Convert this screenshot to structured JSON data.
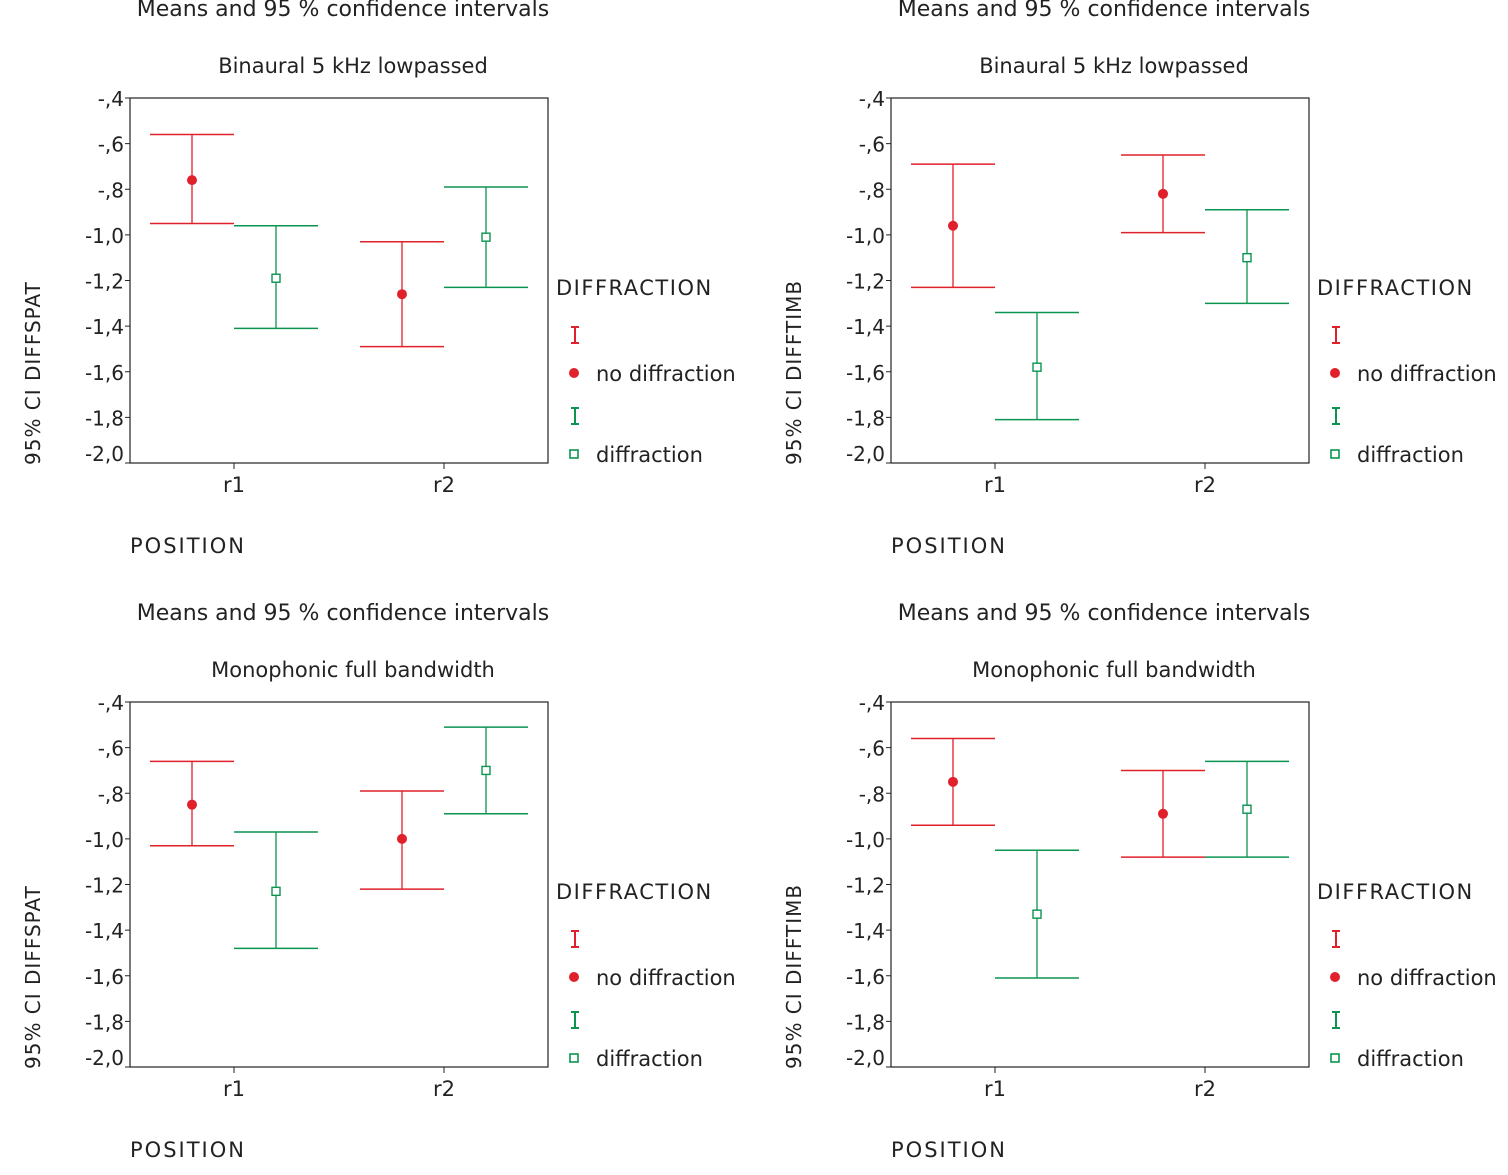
{
  "colors": {
    "no_diffraction": "#e0202a",
    "diffraction": "#0a9450",
    "axis": "#222222"
  },
  "chart_data": [
    {
      "type": "errorbar",
      "title": "Means and 95 % confidence intervals",
      "subtitle": "Binaural 5 kHz lowpassed",
      "xlabel": "POSITION",
      "ylabel": "95% CI DIFFSPAT",
      "categories": [
        "r1",
        "r2"
      ],
      "ylim": [
        -2.0,
        -0.4
      ],
      "yticks": [
        "-,4",
        "-,6",
        "-,8",
        "-1,0",
        "-1,2",
        "-1,4",
        "-1,6",
        "-1,8",
        "-2,0"
      ],
      "legend_title": "DIFFRACTION",
      "series": [
        {
          "name": "no diffraction",
          "mean": [
            -0.76,
            -1.26
          ],
          "upper": [
            -0.56,
            -1.03
          ],
          "lower": [
            -0.95,
            -1.49
          ]
        },
        {
          "name": "diffraction",
          "mean": [
            -1.19,
            -1.01
          ],
          "upper": [
            -0.96,
            -0.79
          ],
          "lower": [
            -1.41,
            -1.23
          ]
        }
      ]
    },
    {
      "type": "errorbar",
      "title": "Means and 95 % confidence intervals",
      "subtitle": "Binaural 5 kHz lowpassed",
      "xlabel": "POSITION",
      "ylabel": "95% CI DIFFTIMB",
      "categories": [
        "r1",
        "r2"
      ],
      "ylim": [
        -2.0,
        -0.4
      ],
      "yticks": [
        "-,4",
        "-,6",
        "-,8",
        "-1,0",
        "-1,2",
        "-1,4",
        "-1,6",
        "-1,8",
        "-2,0"
      ],
      "legend_title": "DIFFRACTION",
      "series": [
        {
          "name": "no diffraction",
          "mean": [
            -0.96,
            -0.82
          ],
          "upper": [
            -0.69,
            -0.65
          ],
          "lower": [
            -1.23,
            -0.99
          ]
        },
        {
          "name": "diffraction",
          "mean": [
            -1.58,
            -1.1
          ],
          "upper": [
            -1.34,
            -0.89
          ],
          "lower": [
            -1.81,
            -1.3
          ]
        }
      ]
    },
    {
      "type": "errorbar",
      "title": "Means and 95 % confidence intervals",
      "subtitle": "Monophonic full bandwidth",
      "xlabel": "POSITION",
      "ylabel": "95% CI DIFFSPAT",
      "categories": [
        "r1",
        "r2"
      ],
      "ylim": [
        -2.0,
        -0.4
      ],
      "yticks": [
        "-,4",
        "-,6",
        "-,8",
        "-1,0",
        "-1,2",
        "-1,4",
        "-1,6",
        "-1,8",
        "-2,0"
      ],
      "legend_title": "DIFFRACTION",
      "series": [
        {
          "name": "no diffraction",
          "mean": [
            -0.85,
            -1.0
          ],
          "upper": [
            -0.66,
            -0.79
          ],
          "lower": [
            -1.03,
            -1.22
          ]
        },
        {
          "name": "diffraction",
          "mean": [
            -1.23,
            -0.7
          ],
          "upper": [
            -0.97,
            -0.51
          ],
          "lower": [
            -1.48,
            -0.89
          ]
        }
      ]
    },
    {
      "type": "errorbar",
      "title": "Means and 95 % confidence intervals",
      "subtitle": "Monophonic full bandwidth",
      "xlabel": "POSITION",
      "ylabel": "95% CI DIFFTIMB",
      "categories": [
        "r1",
        "r2"
      ],
      "ylim": [
        -2.0,
        -0.4
      ],
      "yticks": [
        "-,4",
        "-,6",
        "-,8",
        "-1,0",
        "-1,2",
        "-1,4",
        "-1,6",
        "-1,8",
        "-2,0"
      ],
      "legend_title": "DIFFRACTION",
      "series": [
        {
          "name": "no diffraction",
          "mean": [
            -0.75,
            -0.89
          ],
          "upper": [
            -0.56,
            -0.7
          ],
          "lower": [
            -0.94,
            -1.08
          ]
        },
        {
          "name": "diffraction",
          "mean": [
            -1.33,
            -0.87
          ],
          "upper": [
            -1.05,
            -0.66
          ],
          "lower": [
            -1.61,
            -1.08
          ]
        }
      ]
    }
  ]
}
